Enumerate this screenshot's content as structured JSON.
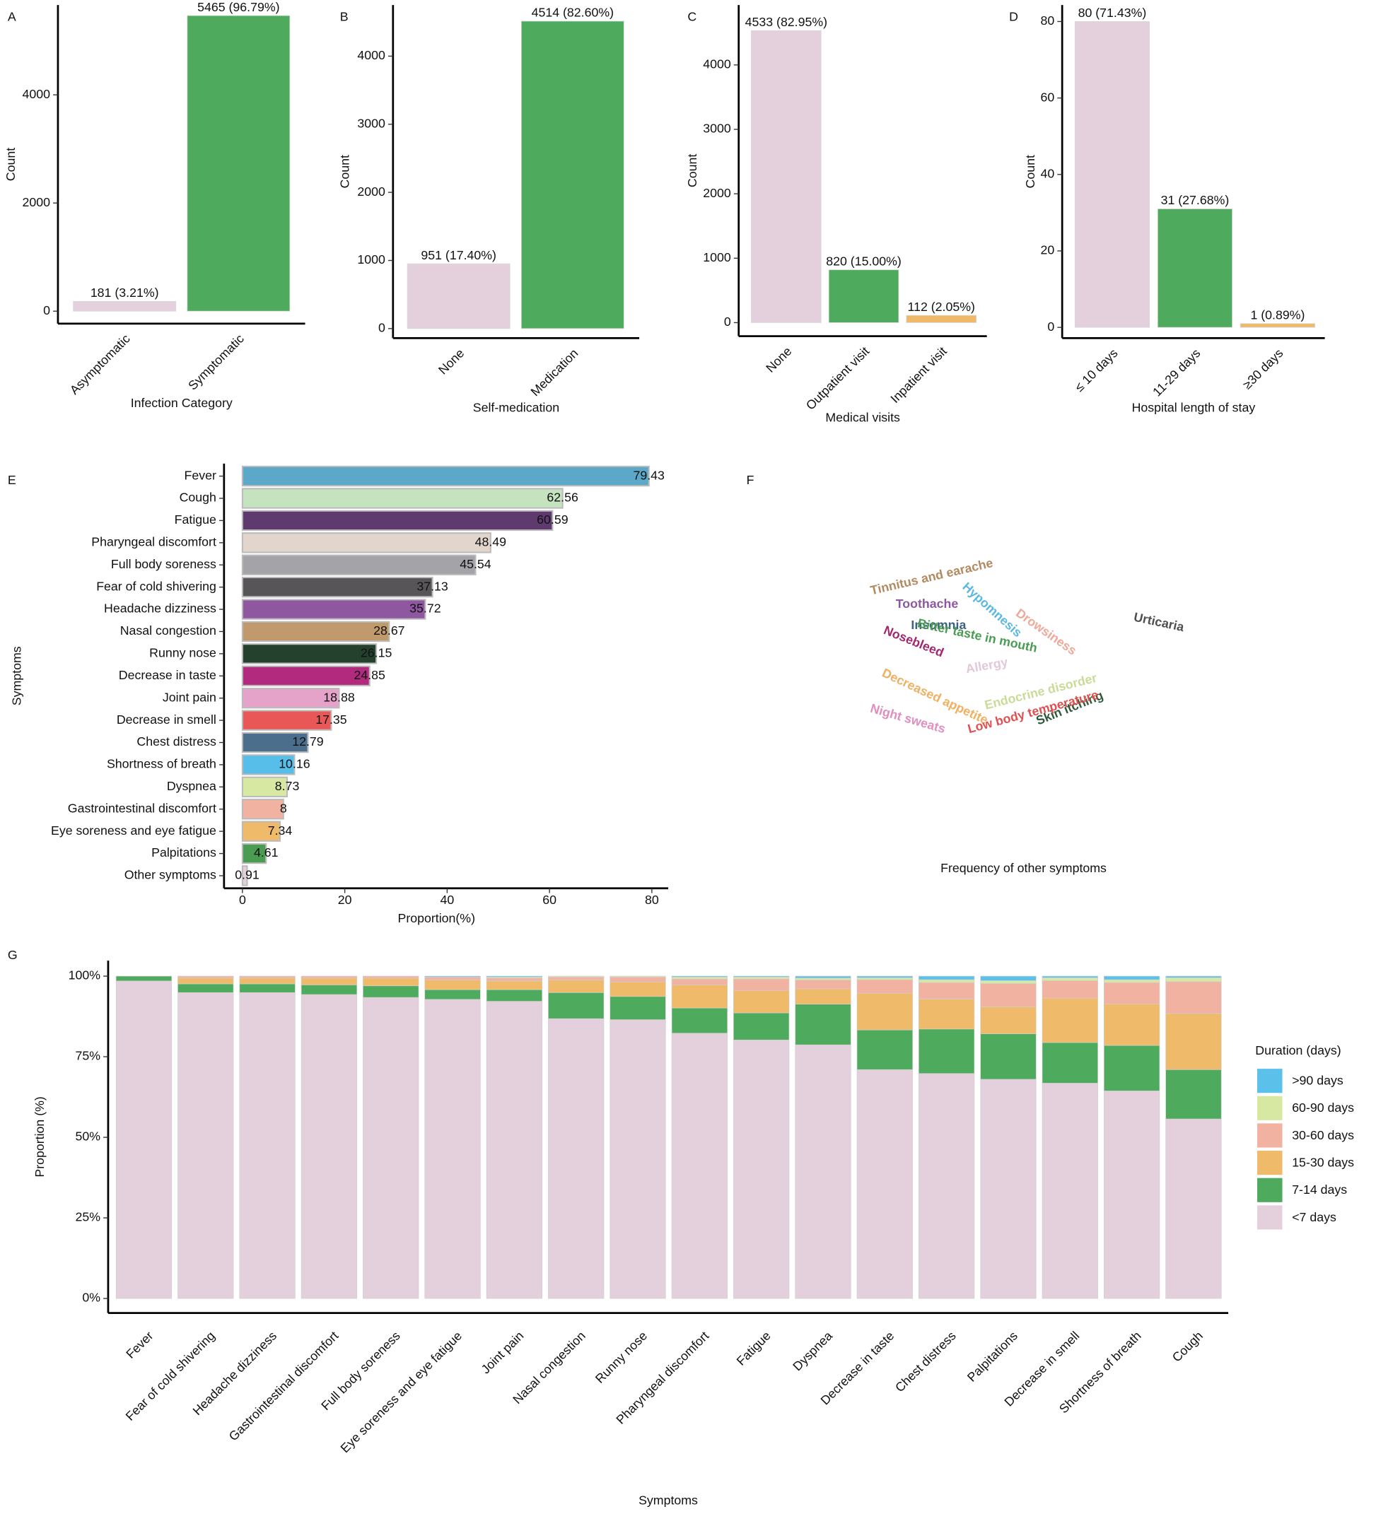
{
  "chart_data": [
    {
      "type": "bar",
      "label": "A",
      "x_label": "Infection Category",
      "y_label": "Count",
      "categories": [
        "Asymptomatic",
        "Symptomatic"
      ],
      "values": [
        181,
        5465
      ],
      "value_labels": [
        "181 (3.21%)",
        "5465 (96.79%)"
      ],
      "colors": [
        "#e3d0dc",
        "#4eaa5c"
      ],
      "ylim": [
        -230,
        5660
      ],
      "yticks": [
        0,
        2000,
        4000
      ]
    },
    {
      "type": "bar",
      "label": "B",
      "x_label": "Self-medication",
      "y_label": "Count",
      "categories": [
        "None",
        "Medication"
      ],
      "values": [
        951,
        4514
      ],
      "value_labels": [
        "951 (17.40%)",
        "4514 (82.60%)"
      ],
      "colors": [
        "#e3d0dc",
        "#4eaa5c"
      ],
      "ylim": [
        -140,
        4750
      ],
      "yticks": [
        0,
        1000,
        2000,
        3000,
        4000
      ]
    },
    {
      "type": "bar",
      "label": "C",
      "x_label": "Medical visits",
      "y_label": "Count",
      "categories": [
        "None",
        "Outpatient visit",
        "Inpatient visit"
      ],
      "values": [
        4533,
        820,
        112
      ],
      "value_labels": [
        "4533 (82.95%)",
        "820 (15.00%)",
        "112 (2.05%)"
      ],
      "colors": [
        "#e3d0dc",
        "#4eaa5c",
        "#f0b96a"
      ],
      "ylim": [
        -210,
        4929
      ],
      "yticks": [
        0,
        1000,
        2000,
        3000,
        4000
      ]
    },
    {
      "type": "bar",
      "label": "D",
      "x_label": "Hospital length of stay",
      "y_label": "Count",
      "categories": [
        "≤ 10 days",
        "11-29 days",
        "≥30 days"
      ],
      "values": [
        80,
        31,
        1
      ],
      "value_labels": [
        "80 (71.43%)",
        "31 (27.68%)",
        "1 (0.89%)"
      ],
      "colors": [
        "#e3d0dc",
        "#4eaa5c",
        "#f0b96a"
      ],
      "ylim": [
        -2.8,
        84.3
      ],
      "yticks": [
        0,
        20,
        40,
        60,
        80
      ]
    },
    {
      "type": "barh",
      "label": "E",
      "x_label": "Proportion(%)",
      "y_label": "Symptoms",
      "categories": [
        "Fever",
        "Cough",
        "Fatigue",
        "Pharyngeal discomfort",
        "Full body soreness",
        "Fear of cold shivering",
        "Headache dizziness",
        "Nasal congestion",
        "Runny nose",
        "Decrease in taste",
        "Joint pain",
        "Decrease in smell",
        "Chest distress",
        "Shortness of breath",
        "Dyspnea",
        "Gastrointestinal discomfort",
        "Eye soreness and eye fatigue",
        "Palpitations",
        "Other symptoms"
      ],
      "values": [
        79.43,
        62.56,
        60.59,
        48.49,
        45.54,
        37.13,
        35.72,
        28.67,
        26.15,
        24.85,
        18.88,
        17.35,
        12.79,
        10.16,
        8.73,
        8,
        7.34,
        4.61,
        0.91
      ],
      "colors": [
        "#5ba8c9",
        "#c5e3bf",
        "#5e3a6e",
        "#e2d6cc",
        "#a3a3a8",
        "#575557",
        "#8e57a0",
        "#c09a6c",
        "#24412e",
        "#b22a7e",
        "#e5a3c9",
        "#e95757",
        "#4a6e8c",
        "#57bde9",
        "#d7e8a3",
        "#f2b2a1",
        "#f0ba6b",
        "#4a9c52",
        "#e3d0dc"
      ],
      "xlim": [
        -3.6,
        83.2
      ],
      "xticks": [
        0,
        20,
        40,
        60,
        80
      ]
    },
    {
      "type": "wordcloud",
      "label": "F",
      "caption": "Frequency of other symptoms",
      "words": [
        "Urticaria",
        "Night sweats",
        "Tinnitus and earache",
        "Decreased appetite",
        "Allergy",
        "Drowsiness",
        "Insomnia",
        "Hypomnesis",
        "Toothache",
        "Nosebleed",
        "Skin itching",
        "Endocrine disorder",
        "Bitter taste in mouth",
        "Low body temperature"
      ],
      "values": [
        20,
        14,
        12,
        9,
        10,
        7,
        7,
        5,
        4,
        4,
        4,
        4,
        2,
        2
      ],
      "colors": [
        "#505050",
        "#e08fbf",
        "#b38a5f",
        "#f0b060",
        "#e3c8d8",
        "#f0a898",
        "#3f6080",
        "#5bb8e0",
        "#8e57a0",
        "#a02870",
        "#2f5a3a",
        "#c8dc98",
        "#4a9c52",
        "#e05050"
      ]
    },
    {
      "type": "stacked_bar",
      "label": "G",
      "x_label": "Symptoms",
      "y_label": "Proportion (%)",
      "legend_title": "Duration (days)",
      "legend": "right",
      "categories": [
        "Fever",
        "Fear of cold shivering",
        "Headache dizziness",
        "Gastrointestinal discomfort",
        "Full body soreness",
        "Eye soreness and eye fatigue",
        "Joint pain",
        "Nasal congestion",
        "Runny nose",
        "Pharyngeal discomfort",
        "Fatigue",
        "Dyspnea",
        "Decrease in taste",
        "Chest distress",
        "Palpitations",
        "Decrease in smell",
        "Shortness of breath",
        "Cough"
      ],
      "series": [
        {
          "name": "<7 days",
          "color": "#e3d0dc",
          "values": [
            98.5,
            94.9,
            94.9,
            94.3,
            93.4,
            92.8,
            92.2,
            86.8,
            86.5,
            82.3,
            80.2,
            78.7,
            71.0,
            69.8,
            68.0,
            66.8,
            64.4,
            55.7
          ]
        },
        {
          "name": "7-14 days",
          "color": "#4eaa5c",
          "values": [
            1.5,
            2.7,
            2.7,
            3.0,
            3.6,
            3.0,
            3.6,
            8.1,
            7.2,
            7.8,
            8.4,
            12.6,
            12.3,
            13.8,
            14.1,
            12.6,
            14.1,
            15.3
          ]
        },
        {
          "name": "15-30 days",
          "color": "#f0ba6b",
          "values": [
            0,
            1.8,
            1.8,
            2.1,
            2.4,
            3.0,
            2.7,
            3.9,
            4.5,
            7.2,
            6.9,
            4.8,
            11.4,
            9.3,
            8.4,
            13.8,
            12.9,
            17.4
          ]
        },
        {
          "name": "30-60 days",
          "color": "#f2b2a1",
          "values": [
            0,
            0.6,
            0.6,
            0.6,
            0.6,
            0.9,
            0.9,
            0.9,
            1.5,
            1.8,
            3.6,
            2.7,
            4.2,
            5.1,
            7.2,
            5.4,
            6.6,
            9.9
          ]
        },
        {
          "name": "60-90 days",
          "color": "#d7e8a3",
          "values": [
            0,
            0,
            0,
            0,
            0,
            0,
            0.3,
            0.3,
            0.3,
            0.6,
            0.6,
            0.6,
            0.6,
            0.9,
            0.9,
            0.9,
            0.9,
            1.2
          ]
        },
        {
          "name": ">90 days",
          "color": "#5bc1ea",
          "values": [
            0,
            0,
            0,
            0,
            0,
            0.3,
            0.3,
            0,
            0,
            0.3,
            0.3,
            0.6,
            0.5,
            1.1,
            1.4,
            0.5,
            1.1,
            0.5
          ]
        }
      ],
      "ylim": [
        -4.5,
        104.8
      ],
      "yticks": [
        {
          "value": 0,
          "label": "0%"
        },
        {
          "value": 25,
          "label": "25%"
        },
        {
          "value": 50,
          "label": "50%"
        },
        {
          "value": 75,
          "label": "75%"
        },
        {
          "value": 100,
          "label": "100%"
        }
      ]
    }
  ]
}
